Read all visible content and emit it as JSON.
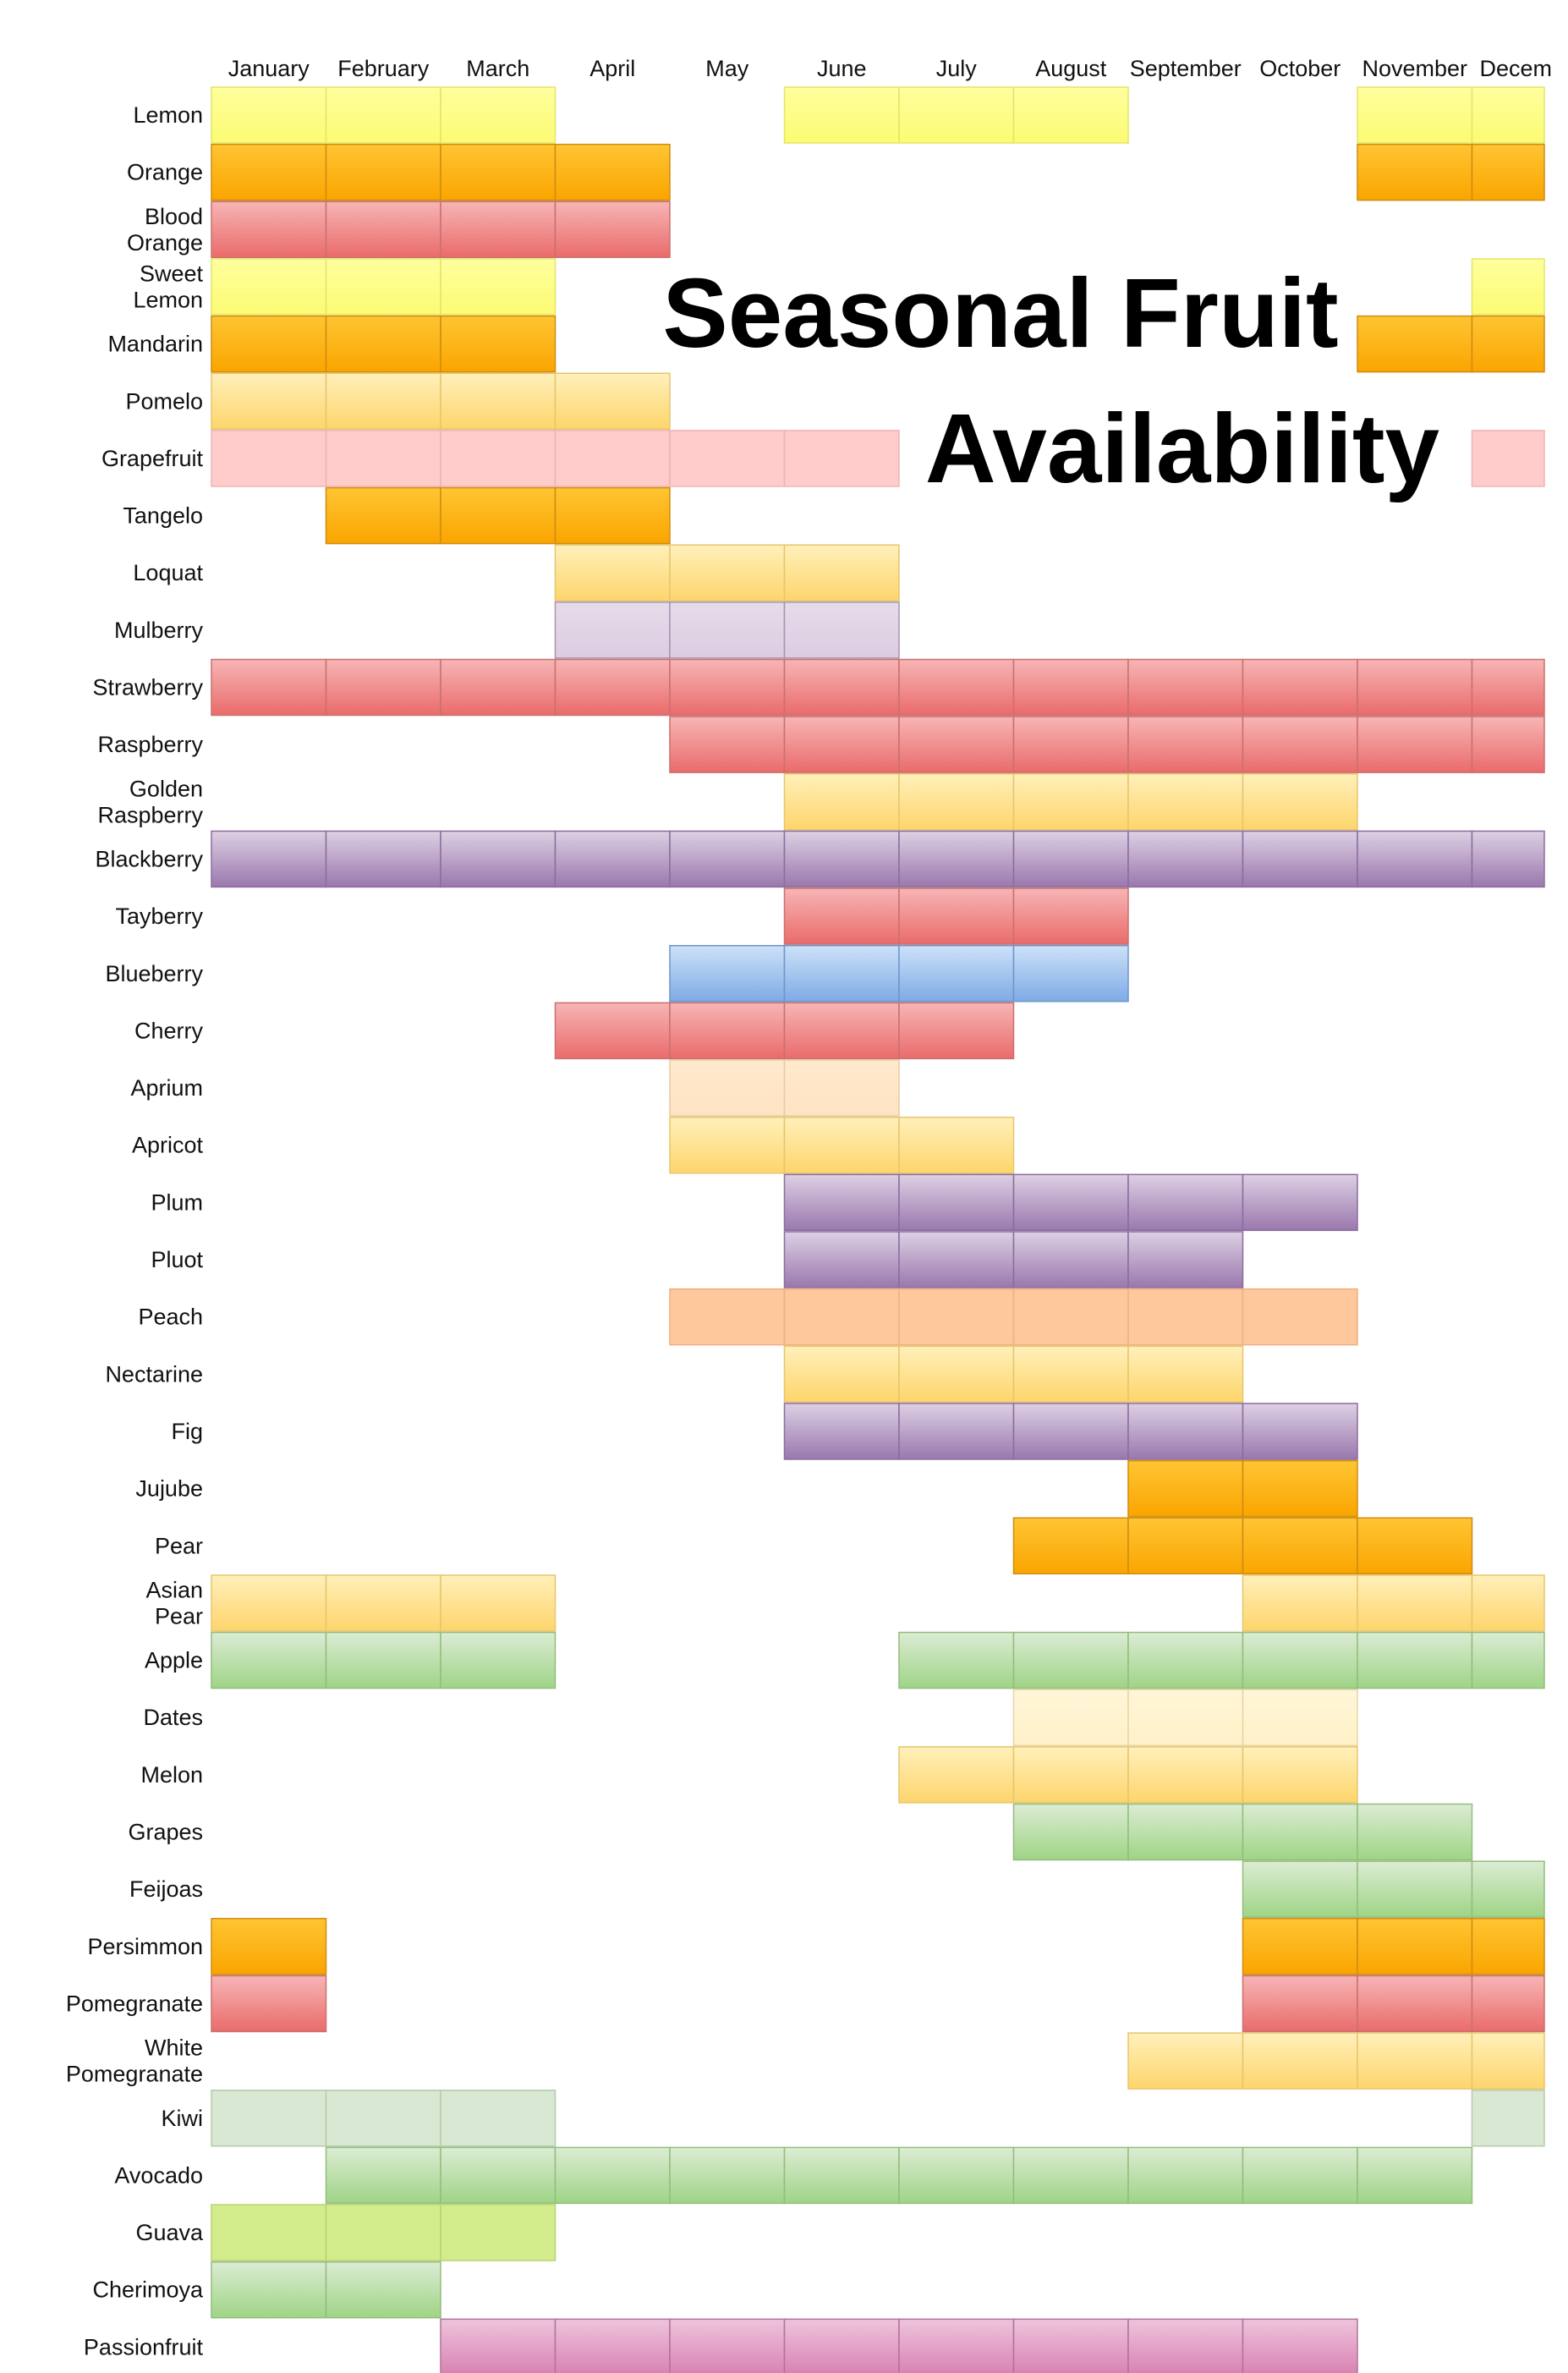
{
  "title": {
    "line1": "Seasonal Fruit",
    "line2": "Availability"
  },
  "chart_data": {
    "type": "heatmap",
    "months": [
      "January",
      "February",
      "March",
      "April",
      "May",
      "June",
      "July",
      "August",
      "September",
      "October",
      "November",
      "December"
    ],
    "month_labels": [
      "January",
      "February",
      "March",
      "April",
      "May",
      "June",
      "July",
      "August",
      "September",
      "October",
      "November",
      "Decem"
    ],
    "palette": {
      "yellow": {
        "top": "#ffff9e",
        "bottom": "#fbfb73",
        "stroke": "#e4e46a"
      },
      "orange": {
        "top": "#ffc533",
        "bottom": "#faa500",
        "stroke": "#cf8c10"
      },
      "red": {
        "top": "#f7b5b5",
        "bottom": "#ea6b6b",
        "stroke": "#c9706f"
      },
      "lightyellow": {
        "top": "#fff0ba",
        "bottom": "#fed56c",
        "stroke": "#e6c56e"
      },
      "pink": {
        "top": "#ffcbcb",
        "bottom": "#ffcbcb",
        "stroke": "#efb3b3"
      },
      "lavender": {
        "top": "#e7dcea",
        "bottom": "#dccce1",
        "stroke": "#a993b1"
      },
      "purple": {
        "top": "#ddd0e4",
        "bottom": "#9a78ad",
        "stroke": "#8c6d9e"
      },
      "blue": {
        "top": "#cde1f8",
        "bottom": "#7eabe6",
        "stroke": "#6f96c9"
      },
      "peach": {
        "top": "#ffe9cd",
        "bottom": "#ffe3c3",
        "stroke": "#ecc9a2"
      },
      "apricot": {
        "top": "#ffc89c",
        "bottom": "#ffc89c",
        "stroke": "#f0af80"
      },
      "cream": {
        "top": "#fff6d8",
        "bottom": "#fff1c8",
        "stroke": "#e6d6a8"
      },
      "green": {
        "top": "#dcecd4",
        "bottom": "#9fd486",
        "stroke": "#92bd7c"
      },
      "palegreen": {
        "top": "#d9e8d2",
        "bottom": "#d9e8d2",
        "stroke": "#b6cbad"
      },
      "lime": {
        "top": "#d3ed8c",
        "bottom": "#d3ed8c",
        "stroke": "#b8d272"
      },
      "magenta": {
        "top": "#eec4dc",
        "bottom": "#d881b2",
        "stroke": "#b27397"
      }
    },
    "rows": [
      {
        "label": [
          "Lemon"
        ],
        "color": "yellow",
        "months": [
          1,
          2,
          3,
          6,
          7,
          8,
          11,
          12
        ]
      },
      {
        "label": [
          "Orange"
        ],
        "color": "orange",
        "months": [
          1,
          2,
          3,
          4,
          11,
          12
        ]
      },
      {
        "label": [
          "Blood",
          "Orange"
        ],
        "color": "red",
        "months": [
          1,
          2,
          3,
          4
        ]
      },
      {
        "label": [
          "Sweet",
          "Lemon"
        ],
        "color": "yellow",
        "months": [
          1,
          2,
          3,
          12
        ]
      },
      {
        "label": [
          "Mandarin"
        ],
        "color": "orange",
        "months": [
          1,
          2,
          3,
          11,
          12
        ]
      },
      {
        "label": [
          "Pomelo"
        ],
        "color": "lightyellow",
        "months": [
          1,
          2,
          3,
          4
        ]
      },
      {
        "label": [
          "Grapefruit"
        ],
        "color": "pink",
        "months": [
          1,
          2,
          3,
          4,
          5,
          6,
          12
        ]
      },
      {
        "label": [
          "Tangelo"
        ],
        "color": "orange",
        "months": [
          2,
          3,
          4
        ]
      },
      {
        "label": [
          "Loquat"
        ],
        "color": "lightyellow",
        "months": [
          4,
          5,
          6
        ]
      },
      {
        "label": [
          "Mulberry"
        ],
        "color": "lavender",
        "months": [
          4,
          5,
          6
        ]
      },
      {
        "label": [
          "Strawberry"
        ],
        "color": "red",
        "months": [
          1,
          2,
          3,
          4,
          5,
          6,
          7,
          8,
          9,
          10,
          11,
          12
        ]
      },
      {
        "label": [
          "Raspberry"
        ],
        "color": "red",
        "months": [
          5,
          6,
          7,
          8,
          9,
          10,
          11,
          12
        ]
      },
      {
        "label": [
          "Golden",
          "Raspberry"
        ],
        "color": "lightyellow",
        "months": [
          6,
          7,
          8,
          9,
          10
        ]
      },
      {
        "label": [
          "Blackberry"
        ],
        "color": "purple",
        "months": [
          1,
          2,
          3,
          4,
          5,
          6,
          7,
          8,
          9,
          10,
          11,
          12
        ]
      },
      {
        "label": [
          "Tayberry"
        ],
        "color": "red",
        "months": [
          6,
          7,
          8
        ]
      },
      {
        "label": [
          "Blueberry"
        ],
        "color": "blue",
        "months": [
          5,
          6,
          7,
          8
        ]
      },
      {
        "label": [
          "Cherry"
        ],
        "color": "red",
        "months": [
          4,
          5,
          6,
          7
        ]
      },
      {
        "label": [
          "Aprium"
        ],
        "color": "peach",
        "months": [
          5,
          6
        ]
      },
      {
        "label": [
          "Apricot"
        ],
        "color": "lightyellow",
        "months": [
          5,
          6,
          7
        ]
      },
      {
        "label": [
          "Plum"
        ],
        "color": "purple",
        "months": [
          6,
          7,
          8,
          9,
          10
        ]
      },
      {
        "label": [
          "Pluot"
        ],
        "color": "purple",
        "months": [
          6,
          7,
          8,
          9
        ]
      },
      {
        "label": [
          "Peach"
        ],
        "color": "apricot",
        "months": [
          5,
          6,
          7,
          8,
          9,
          10
        ]
      },
      {
        "label": [
          "Nectarine"
        ],
        "color": "lightyellow",
        "months": [
          6,
          7,
          8,
          9
        ]
      },
      {
        "label": [
          "Fig"
        ],
        "color": "purple",
        "months": [
          6,
          7,
          8,
          9,
          10
        ]
      },
      {
        "label": [
          "Jujube"
        ],
        "color": "orange",
        "months": [
          9,
          10
        ]
      },
      {
        "label": [
          "Pear"
        ],
        "color": "orange",
        "months": [
          8,
          9,
          10,
          11
        ]
      },
      {
        "label": [
          "Asian",
          "Pear"
        ],
        "color": "lightyellow",
        "months": [
          1,
          2,
          3,
          10,
          11,
          12
        ]
      },
      {
        "label": [
          "Apple"
        ],
        "color": "green",
        "months": [
          1,
          2,
          3,
          7,
          8,
          9,
          10,
          11,
          12
        ]
      },
      {
        "label": [
          "Dates"
        ],
        "color": "cream",
        "months": [
          8,
          9,
          10
        ]
      },
      {
        "label": [
          "Melon"
        ],
        "color": "lightyellow",
        "months": [
          7,
          8,
          9,
          10
        ]
      },
      {
        "label": [
          "Grapes"
        ],
        "color": "green",
        "months": [
          8,
          9,
          10,
          11
        ]
      },
      {
        "label": [
          "Feijoas"
        ],
        "color": "green",
        "months": [
          10,
          11,
          12
        ]
      },
      {
        "label": [
          "Persimmon"
        ],
        "color": "orange",
        "months": [
          1,
          10,
          11,
          12
        ]
      },
      {
        "label": [
          "Pomegranate"
        ],
        "color": "red",
        "months": [
          1,
          10,
          11,
          12
        ]
      },
      {
        "label": [
          "White",
          "Pomegranate"
        ],
        "color": "lightyellow",
        "months": [
          9,
          10,
          11,
          12
        ]
      },
      {
        "label": [
          "Kiwi"
        ],
        "color": "palegreen",
        "months": [
          1,
          2,
          3,
          12
        ]
      },
      {
        "label": [
          "Avocado"
        ],
        "color": "green",
        "months": [
          2,
          3,
          4,
          5,
          6,
          7,
          8,
          9,
          10,
          11
        ]
      },
      {
        "label": [
          "Guava"
        ],
        "color": "lime",
        "months": [
          1,
          2,
          3
        ]
      },
      {
        "label": [
          "Cherimoya"
        ],
        "color": "green",
        "months": [
          1,
          2
        ]
      },
      {
        "label": [
          "Passionfruit"
        ],
        "color": "magenta",
        "months": [
          3,
          4,
          5,
          6,
          7,
          8,
          9,
          10
        ]
      }
    ]
  }
}
